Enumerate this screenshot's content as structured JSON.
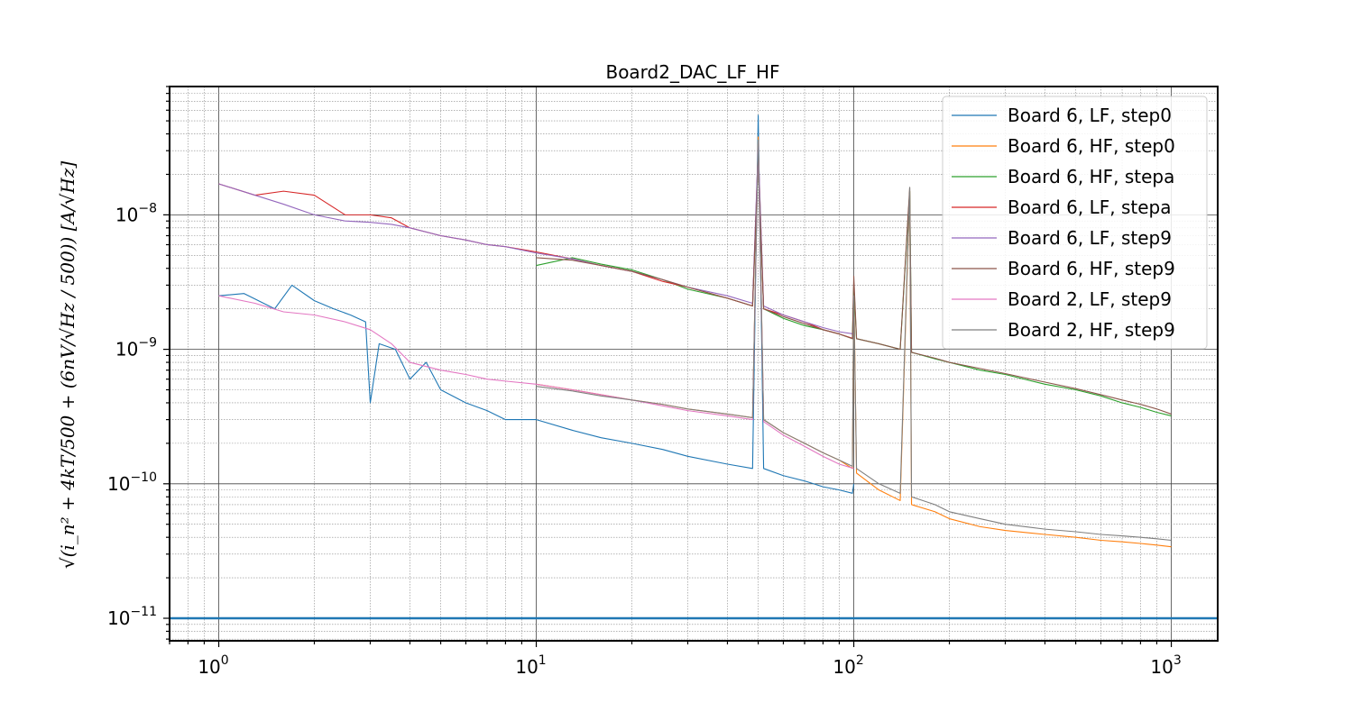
{
  "chart_data": {
    "type": "line",
    "title": "Board2_DAC_LF_HF",
    "xlabel": "",
    "ylabel": "√(i_n² + 4kT/500 + (6nV/√Hz / 500)) [A/√Hz]",
    "xscale": "log",
    "yscale": "log",
    "xlim": [
      0.7,
      1400
    ],
    "ylim": [
      6.8e-12,
      9e-08
    ],
    "x_ticks": [
      {
        "value": 1,
        "base": "10",
        "exp": "0"
      },
      {
        "value": 10,
        "base": "10",
        "exp": "1"
      },
      {
        "value": 100,
        "base": "10",
        "exp": "2"
      },
      {
        "value": 1000,
        "base": "10",
        "exp": "3"
      }
    ],
    "y_ticks": [
      {
        "value": 1e-11,
        "base": "10",
        "exp": "−11"
      },
      {
        "value": 1e-10,
        "base": "10",
        "exp": "−10"
      },
      {
        "value": 1e-09,
        "base": "10",
        "exp": "−9"
      },
      {
        "value": 1e-08,
        "base": "10",
        "exp": "−8"
      }
    ],
    "grid": "major and minor",
    "legend_position": "top-right",
    "horizontal_line": {
      "value": 1e-11,
      "color": "#1f77b4"
    },
    "series": [
      {
        "name": "Board 6, LF, step0",
        "color": "#1f77b4",
        "points": [
          [
            1,
            2.5e-09
          ],
          [
            1.2,
            2.6e-09
          ],
          [
            1.5,
            2e-09
          ],
          [
            1.7,
            3e-09
          ],
          [
            2,
            2.3e-09
          ],
          [
            2.3,
            2e-09
          ],
          [
            2.6,
            1.8e-09
          ],
          [
            2.9,
            1.6e-09
          ],
          [
            3,
            4e-10
          ],
          [
            3.2,
            1.1e-09
          ],
          [
            3.6,
            1e-09
          ],
          [
            4,
            6e-10
          ],
          [
            4.5,
            8e-10
          ],
          [
            5,
            5e-10
          ],
          [
            6,
            4e-10
          ],
          [
            7,
            3.5e-10
          ],
          [
            8,
            3e-10
          ],
          [
            10,
            3e-10
          ],
          [
            13,
            2.5e-10
          ],
          [
            16,
            2.2e-10
          ],
          [
            20,
            2e-10
          ],
          [
            25,
            1.8e-10
          ],
          [
            30,
            1.6e-10
          ],
          [
            40,
            1.4e-10
          ],
          [
            48,
            1.3e-10
          ],
          [
            50,
            5.5e-08
          ],
          [
            52,
            1.3e-10
          ],
          [
            60,
            1.15e-10
          ],
          [
            70,
            1.05e-10
          ],
          [
            80,
            9.5e-11
          ],
          [
            90,
            9e-11
          ],
          [
            99,
            8.5e-11
          ],
          [
            100,
            1e-10
          ]
        ]
      },
      {
        "name": "Board 6, HF, step0",
        "color": "#ff7f0e",
        "points": [
          [
            10,
            5.5e-10
          ],
          [
            13,
            5e-10
          ],
          [
            16,
            4.6e-10
          ],
          [
            20,
            4.2e-10
          ],
          [
            25,
            3.9e-10
          ],
          [
            30,
            3.6e-10
          ],
          [
            40,
            3.3e-10
          ],
          [
            48,
            3.1e-10
          ],
          [
            50,
            3.8e-08
          ],
          [
            52,
            3e-10
          ],
          [
            60,
            2.4e-10
          ],
          [
            70,
            2e-10
          ],
          [
            80,
            1.7e-10
          ],
          [
            90,
            1.5e-10
          ],
          [
            99,
            1.3e-10
          ],
          [
            100,
            3e-09
          ],
          [
            102,
            1.2e-10
          ],
          [
            120,
            9e-11
          ],
          [
            140,
            7.5e-11
          ],
          [
            150,
            1.5e-08
          ],
          [
            152,
            7e-11
          ],
          [
            180,
            6.2e-11
          ],
          [
            200,
            5.5e-11
          ],
          [
            250,
            4.8e-11
          ],
          [
            300,
            4.5e-11
          ],
          [
            400,
            4.2e-11
          ],
          [
            500,
            4e-11
          ],
          [
            600,
            3.8e-11
          ],
          [
            700,
            3.7e-11
          ],
          [
            800,
            3.6e-11
          ],
          [
            900,
            3.5e-11
          ],
          [
            1000,
            3.4e-11
          ]
        ]
      },
      {
        "name": "Board 6, HF, stepa",
        "color": "#2ca02c",
        "points": [
          [
            10,
            4.2e-09
          ],
          [
            13,
            4.8e-09
          ],
          [
            16,
            4.3e-09
          ],
          [
            20,
            3.9e-09
          ],
          [
            25,
            3.3e-09
          ],
          [
            30,
            2.8e-09
          ],
          [
            40,
            2.4e-09
          ],
          [
            48,
            2.1e-09
          ],
          [
            50,
            2.5e-08
          ],
          [
            52,
            2e-09
          ],
          [
            60,
            1.7e-09
          ],
          [
            70,
            1.5e-09
          ],
          [
            80,
            1.4e-09
          ],
          [
            90,
            1.3e-09
          ],
          [
            99,
            1.2e-09
          ],
          [
            100,
            3e-09
          ],
          [
            102,
            1.2e-09
          ],
          [
            120,
            1.1e-09
          ],
          [
            140,
            1e-09
          ],
          [
            150,
            1.5e-08
          ],
          [
            152,
            9.5e-10
          ],
          [
            180,
            8.5e-10
          ],
          [
            200,
            8e-10
          ],
          [
            250,
            7e-10
          ],
          [
            300,
            6.5e-10
          ],
          [
            400,
            5.5e-10
          ],
          [
            500,
            5e-10
          ],
          [
            600,
            4.5e-10
          ],
          [
            700,
            4e-10
          ],
          [
            800,
            3.7e-10
          ],
          [
            900,
            3.4e-10
          ],
          [
            1000,
            3.2e-10
          ]
        ]
      },
      {
        "name": "Board 6, LF, stepa",
        "color": "#d62728",
        "points": [
          [
            1,
            1.7e-08
          ],
          [
            1.3,
            1.4e-08
          ],
          [
            1.6,
            1.5e-08
          ],
          [
            2,
            1.4e-08
          ],
          [
            2.5,
            1e-08
          ],
          [
            3,
            1e-08
          ],
          [
            3.5,
            9.5e-09
          ],
          [
            4,
            8e-09
          ],
          [
            5,
            7e-09
          ],
          [
            6,
            6.5e-09
          ],
          [
            7,
            6e-09
          ],
          [
            8,
            5.8e-09
          ],
          [
            10,
            5.3e-09
          ],
          [
            13,
            4.7e-09
          ],
          [
            16,
            4.2e-09
          ],
          [
            20,
            3.8e-09
          ],
          [
            25,
            3.2e-09
          ],
          [
            30,
            2.9e-09
          ],
          [
            40,
            2.4e-09
          ],
          [
            48,
            2.1e-09
          ],
          [
            50,
            3e-08
          ],
          [
            52,
            2e-09
          ],
          [
            60,
            1.8e-09
          ],
          [
            70,
            1.6e-09
          ],
          [
            80,
            1.4e-09
          ],
          [
            90,
            1.3e-09
          ],
          [
            100,
            1.2e-09
          ]
        ]
      },
      {
        "name": "Board 6, LF, step9",
        "color": "#9467bd",
        "points": [
          [
            1,
            1.7e-08
          ],
          [
            1.3,
            1.4e-08
          ],
          [
            1.6,
            1.2e-08
          ],
          [
            2,
            1e-08
          ],
          [
            2.5,
            9e-09
          ],
          [
            3,
            8.8e-09
          ],
          [
            3.5,
            8.5e-09
          ],
          [
            4,
            8e-09
          ],
          [
            5,
            7e-09
          ],
          [
            6,
            6.5e-09
          ],
          [
            7,
            6e-09
          ],
          [
            8,
            5.8e-09
          ],
          [
            10,
            5.2e-09
          ],
          [
            13,
            4.7e-09
          ],
          [
            16,
            4.2e-09
          ],
          [
            20,
            3.8e-09
          ],
          [
            25,
            3.3e-09
          ],
          [
            30,
            2.9e-09
          ],
          [
            40,
            2.5e-09
          ],
          [
            48,
            2.2e-09
          ],
          [
            50,
            3.2e-08
          ],
          [
            52,
            2.1e-09
          ],
          [
            60,
            1.8e-09
          ],
          [
            70,
            1.6e-09
          ],
          [
            80,
            1.45e-09
          ],
          [
            90,
            1.35e-09
          ],
          [
            100,
            1.3e-09
          ]
        ]
      },
      {
        "name": "Board 6, HF, step9",
        "color": "#8c564b",
        "points": [
          [
            10,
            4.8e-09
          ],
          [
            13,
            4.6e-09
          ],
          [
            16,
            4.2e-09
          ],
          [
            20,
            3.8e-09
          ],
          [
            25,
            3.3e-09
          ],
          [
            30,
            2.9e-09
          ],
          [
            40,
            2.4e-09
          ],
          [
            48,
            2.1e-09
          ],
          [
            50,
            2.5e-08
          ],
          [
            52,
            2e-09
          ],
          [
            60,
            1.75e-09
          ],
          [
            70,
            1.55e-09
          ],
          [
            80,
            1.4e-09
          ],
          [
            90,
            1.3e-09
          ],
          [
            99,
            1.2e-09
          ],
          [
            100,
            3.5e-09
          ],
          [
            102,
            1.2e-09
          ],
          [
            120,
            1.1e-09
          ],
          [
            140,
            1e-09
          ],
          [
            150,
            1.6e-08
          ],
          [
            152,
            9.5e-10
          ],
          [
            180,
            8.6e-10
          ],
          [
            200,
            8e-10
          ],
          [
            250,
            7.2e-10
          ],
          [
            300,
            6.6e-10
          ],
          [
            400,
            5.7e-10
          ],
          [
            500,
            5.1e-10
          ],
          [
            600,
            4.6e-10
          ],
          [
            700,
            4.2e-10
          ],
          [
            800,
            3.9e-10
          ],
          [
            900,
            3.6e-10
          ],
          [
            1000,
            3.3e-10
          ]
        ]
      },
      {
        "name": "Board 2, LF, step9",
        "color": "#e377c2",
        "points": [
          [
            1,
            2.5e-09
          ],
          [
            1.3,
            2.2e-09
          ],
          [
            1.6,
            1.9e-09
          ],
          [
            2,
            1.8e-09
          ],
          [
            2.5,
            1.6e-09
          ],
          [
            3,
            1.4e-09
          ],
          [
            3.5,
            1.1e-09
          ],
          [
            4,
            8e-10
          ],
          [
            5,
            7e-10
          ],
          [
            6,
            6.5e-10
          ],
          [
            7,
            6e-10
          ],
          [
            8,
            5.8e-10
          ],
          [
            10,
            5.5e-10
          ],
          [
            13,
            5e-10
          ],
          [
            16,
            4.6e-10
          ],
          [
            20,
            4.2e-10
          ],
          [
            25,
            3.8e-10
          ],
          [
            30,
            3.5e-10
          ],
          [
            40,
            3.2e-10
          ],
          [
            48,
            3e-10
          ],
          [
            50,
            3.5e-08
          ],
          [
            52,
            2.9e-10
          ],
          [
            60,
            2.3e-10
          ],
          [
            70,
            1.9e-10
          ],
          [
            80,
            1.6e-10
          ],
          [
            90,
            1.4e-10
          ],
          [
            100,
            1.3e-10
          ]
        ]
      },
      {
        "name": "Board 2, HF, step9",
        "color": "#7f7f7f",
        "points": [
          [
            10,
            5.3e-10
          ],
          [
            13,
            4.9e-10
          ],
          [
            16,
            4.5e-10
          ],
          [
            20,
            4.2e-10
          ],
          [
            25,
            3.9e-10
          ],
          [
            30,
            3.6e-10
          ],
          [
            40,
            3.3e-10
          ],
          [
            48,
            3.1e-10
          ],
          [
            50,
            3.6e-08
          ],
          [
            52,
            3e-10
          ],
          [
            60,
            2.4e-10
          ],
          [
            70,
            2e-10
          ],
          [
            80,
            1.7e-10
          ],
          [
            90,
            1.5e-10
          ],
          [
            99,
            1.35e-10
          ],
          [
            100,
            2.5e-09
          ],
          [
            102,
            1.3e-10
          ],
          [
            120,
            1e-10
          ],
          [
            140,
            8.5e-11
          ],
          [
            150,
            1.6e-08
          ],
          [
            152,
            8e-11
          ],
          [
            180,
            7e-11
          ],
          [
            200,
            6.2e-11
          ],
          [
            250,
            5.5e-11
          ],
          [
            300,
            5e-11
          ],
          [
            400,
            4.6e-11
          ],
          [
            500,
            4.4e-11
          ],
          [
            600,
            4.2e-11
          ],
          [
            700,
            4.1e-11
          ],
          [
            800,
            4e-11
          ],
          [
            900,
            3.9e-11
          ],
          [
            1000,
            3.8e-11
          ]
        ]
      }
    ]
  }
}
